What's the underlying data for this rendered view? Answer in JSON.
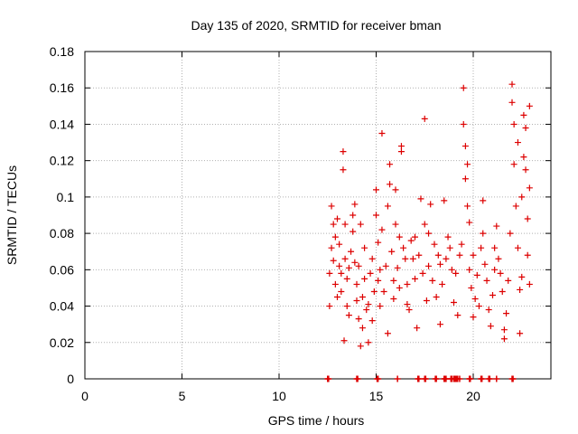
{
  "chart_data": {
    "type": "scatter",
    "title": "Day 135 of 2020, SRMTID for receiver bman",
    "xlabel": "GPS time / hours",
    "ylabel": "SRMTID / TECUs",
    "xlim": [
      0,
      24
    ],
    "ylim": [
      0,
      0.18
    ],
    "xticks": [
      0,
      5,
      10,
      15,
      20
    ],
    "xtick_labels": [
      "0",
      "5",
      "10",
      "15",
      "20"
    ],
    "yticks": [
      0,
      0.02,
      0.04,
      0.06,
      0.08,
      0.1,
      0.12,
      0.14,
      0.16,
      0.18
    ],
    "ytick_labels": [
      "0",
      "0.02",
      "0.04",
      "0.06",
      "0.08",
      "0.1",
      "0.12",
      "0.14",
      "0.16",
      "0.18"
    ],
    "grid": true,
    "marker": "+",
    "color": "#dd0000",
    "series": [
      {
        "name": "SRMTID",
        "points": [
          [
            12.6,
            0.04
          ],
          [
            12.6,
            0.058
          ],
          [
            12.7,
            0.072
          ],
          [
            12.7,
            0.095
          ],
          [
            12.8,
            0.085
          ],
          [
            12.8,
            0.065
          ],
          [
            12.9,
            0.052
          ],
          [
            12.9,
            0.078
          ],
          [
            13.0,
            0.088
          ],
          [
            13.0,
            0.045
          ],
          [
            13.1,
            0.062
          ],
          [
            13.1,
            0.074
          ],
          [
            13.2,
            0.058
          ],
          [
            13.2,
            0.048
          ],
          [
            13.3,
            0.125
          ],
          [
            13.3,
            0.115
          ],
          [
            13.35,
            0.021
          ],
          [
            13.4,
            0.085
          ],
          [
            13.4,
            0.066
          ],
          [
            13.5,
            0.055
          ],
          [
            13.5,
            0.04
          ],
          [
            13.6,
            0.061
          ],
          [
            13.6,
            0.035
          ],
          [
            13.7,
            0.07
          ],
          [
            13.8,
            0.09
          ],
          [
            13.8,
            0.081
          ],
          [
            13.9,
            0.064
          ],
          [
            13.9,
            0.096
          ],
          [
            14.0,
            0.052
          ],
          [
            14.0,
            0.043
          ],
          [
            14.1,
            0.033
          ],
          [
            14.1,
            0.062
          ],
          [
            14.2,
            0.085
          ],
          [
            14.2,
            0.018
          ],
          [
            14.3,
            0.028
          ],
          [
            14.3,
            0.045
          ],
          [
            14.4,
            0.072
          ],
          [
            14.4,
            0.055
          ],
          [
            14.5,
            0.038
          ],
          [
            14.6,
            0.02
          ],
          [
            14.6,
            0.041
          ],
          [
            14.7,
            0.058
          ],
          [
            14.8,
            0.032
          ],
          [
            14.8,
            0.066
          ],
          [
            14.9,
            0.048
          ],
          [
            15.0,
            0.104
          ],
          [
            15.0,
            0.09
          ],
          [
            15.1,
            0.075
          ],
          [
            15.1,
            0.054
          ],
          [
            15.2,
            0.06
          ],
          [
            15.2,
            0.04
          ],
          [
            15.3,
            0.135
          ],
          [
            15.3,
            0.082
          ],
          [
            15.4,
            0.048
          ],
          [
            15.5,
            0.062
          ],
          [
            15.6,
            0.025
          ],
          [
            15.6,
            0.095
          ],
          [
            15.7,
            0.107
          ],
          [
            15.7,
            0.118
          ],
          [
            15.8,
            0.07
          ],
          [
            15.9,
            0.054
          ],
          [
            15.9,
            0.044
          ],
          [
            16.0,
            0.104
          ],
          [
            16.0,
            0.085
          ],
          [
            16.1,
            0.061
          ],
          [
            16.2,
            0.05
          ],
          [
            16.2,
            0.078
          ],
          [
            16.3,
            0.128
          ],
          [
            16.3,
            0.125
          ],
          [
            16.4,
            0.072
          ],
          [
            16.5,
            0.066
          ],
          [
            16.6,
            0.052
          ],
          [
            16.6,
            0.041
          ],
          [
            16.7,
            0.038
          ],
          [
            16.8,
            0.076
          ],
          [
            16.9,
            0.066
          ],
          [
            17.0,
            0.055
          ],
          [
            17.0,
            0.078
          ],
          [
            17.1,
            0.028
          ],
          [
            17.2,
            0.068
          ],
          [
            17.3,
            0.099
          ],
          [
            17.4,
            0.058
          ],
          [
            17.5,
            0.143
          ],
          [
            17.5,
            0.085
          ],
          [
            17.6,
            0.043
          ],
          [
            17.7,
            0.062
          ],
          [
            17.7,
            0.08
          ],
          [
            17.8,
            0.096
          ],
          [
            17.9,
            0.054
          ],
          [
            18.0,
            0.074
          ],
          [
            18.1,
            0.045
          ],
          [
            18.2,
            0.068
          ],
          [
            18.3,
            0.03
          ],
          [
            18.3,
            0.063
          ],
          [
            18.4,
            0.052
          ],
          [
            18.5,
            0.098
          ],
          [
            18.6,
            0.066
          ],
          [
            18.7,
            0.078
          ],
          [
            18.8,
            0.072
          ],
          [
            18.9,
            0.06
          ],
          [
            19.0,
            0.042
          ],
          [
            19.1,
            0.058
          ],
          [
            19.2,
            0.035
          ],
          [
            19.3,
            0.068
          ],
          [
            19.4,
            0.074
          ],
          [
            19.5,
            0.16
          ],
          [
            19.5,
            0.14
          ],
          [
            19.6,
            0.128
          ],
          [
            19.6,
            0.11
          ],
          [
            19.7,
            0.118
          ],
          [
            19.7,
            0.095
          ],
          [
            19.8,
            0.086
          ],
          [
            19.8,
            0.06
          ],
          [
            19.9,
            0.05
          ],
          [
            20.0,
            0.034
          ],
          [
            20.0,
            0.068
          ],
          [
            20.1,
            0.044
          ],
          [
            20.2,
            0.057
          ],
          [
            20.3,
            0.04
          ],
          [
            20.4,
            0.072
          ],
          [
            20.5,
            0.098
          ],
          [
            20.5,
            0.08
          ],
          [
            20.6,
            0.063
          ],
          [
            20.7,
            0.054
          ],
          [
            20.8,
            0.038
          ],
          [
            20.9,
            0.029
          ],
          [
            21.0,
            0.046
          ],
          [
            21.1,
            0.072
          ],
          [
            21.1,
            0.06
          ],
          [
            21.2,
            0.084
          ],
          [
            21.3,
            0.066
          ],
          [
            21.4,
            0.058
          ],
          [
            21.5,
            0.048
          ],
          [
            21.6,
            0.027
          ],
          [
            21.6,
            0.022
          ],
          [
            21.7,
            0.036
          ],
          [
            21.8,
            0.054
          ],
          [
            21.9,
            0.08
          ],
          [
            22.0,
            0.162
          ],
          [
            22.0,
            0.152
          ],
          [
            22.1,
            0.14
          ],
          [
            22.1,
            0.118
          ],
          [
            22.2,
            0.095
          ],
          [
            22.3,
            0.13
          ],
          [
            22.3,
            0.072
          ],
          [
            22.4,
            0.049
          ],
          [
            22.4,
            0.025
          ],
          [
            22.5,
            0.056
          ],
          [
            22.5,
            0.1
          ],
          [
            22.6,
            0.122
          ],
          [
            22.6,
            0.145
          ],
          [
            22.7,
            0.138
          ],
          [
            22.7,
            0.115
          ],
          [
            22.8,
            0.088
          ],
          [
            22.8,
            0.068
          ],
          [
            22.9,
            0.052
          ],
          [
            22.9,
            0.105
          ],
          [
            22.9,
            0.15
          ]
        ]
      }
    ],
    "zero_markers_x": [
      12.5,
      12.55,
      14.0,
      14.05,
      15.05,
      15.1,
      16.1,
      17.15,
      17.2,
      17.5,
      17.55,
      18.05,
      18.1,
      18.5,
      18.55,
      18.6,
      18.85,
      18.9,
      19.0,
      19.05,
      19.1,
      19.15,
      19.2,
      19.3,
      19.8,
      19.85,
      20.4,
      20.45,
      20.8,
      20.85,
      21.2,
      22.0,
      22.05
    ]
  }
}
